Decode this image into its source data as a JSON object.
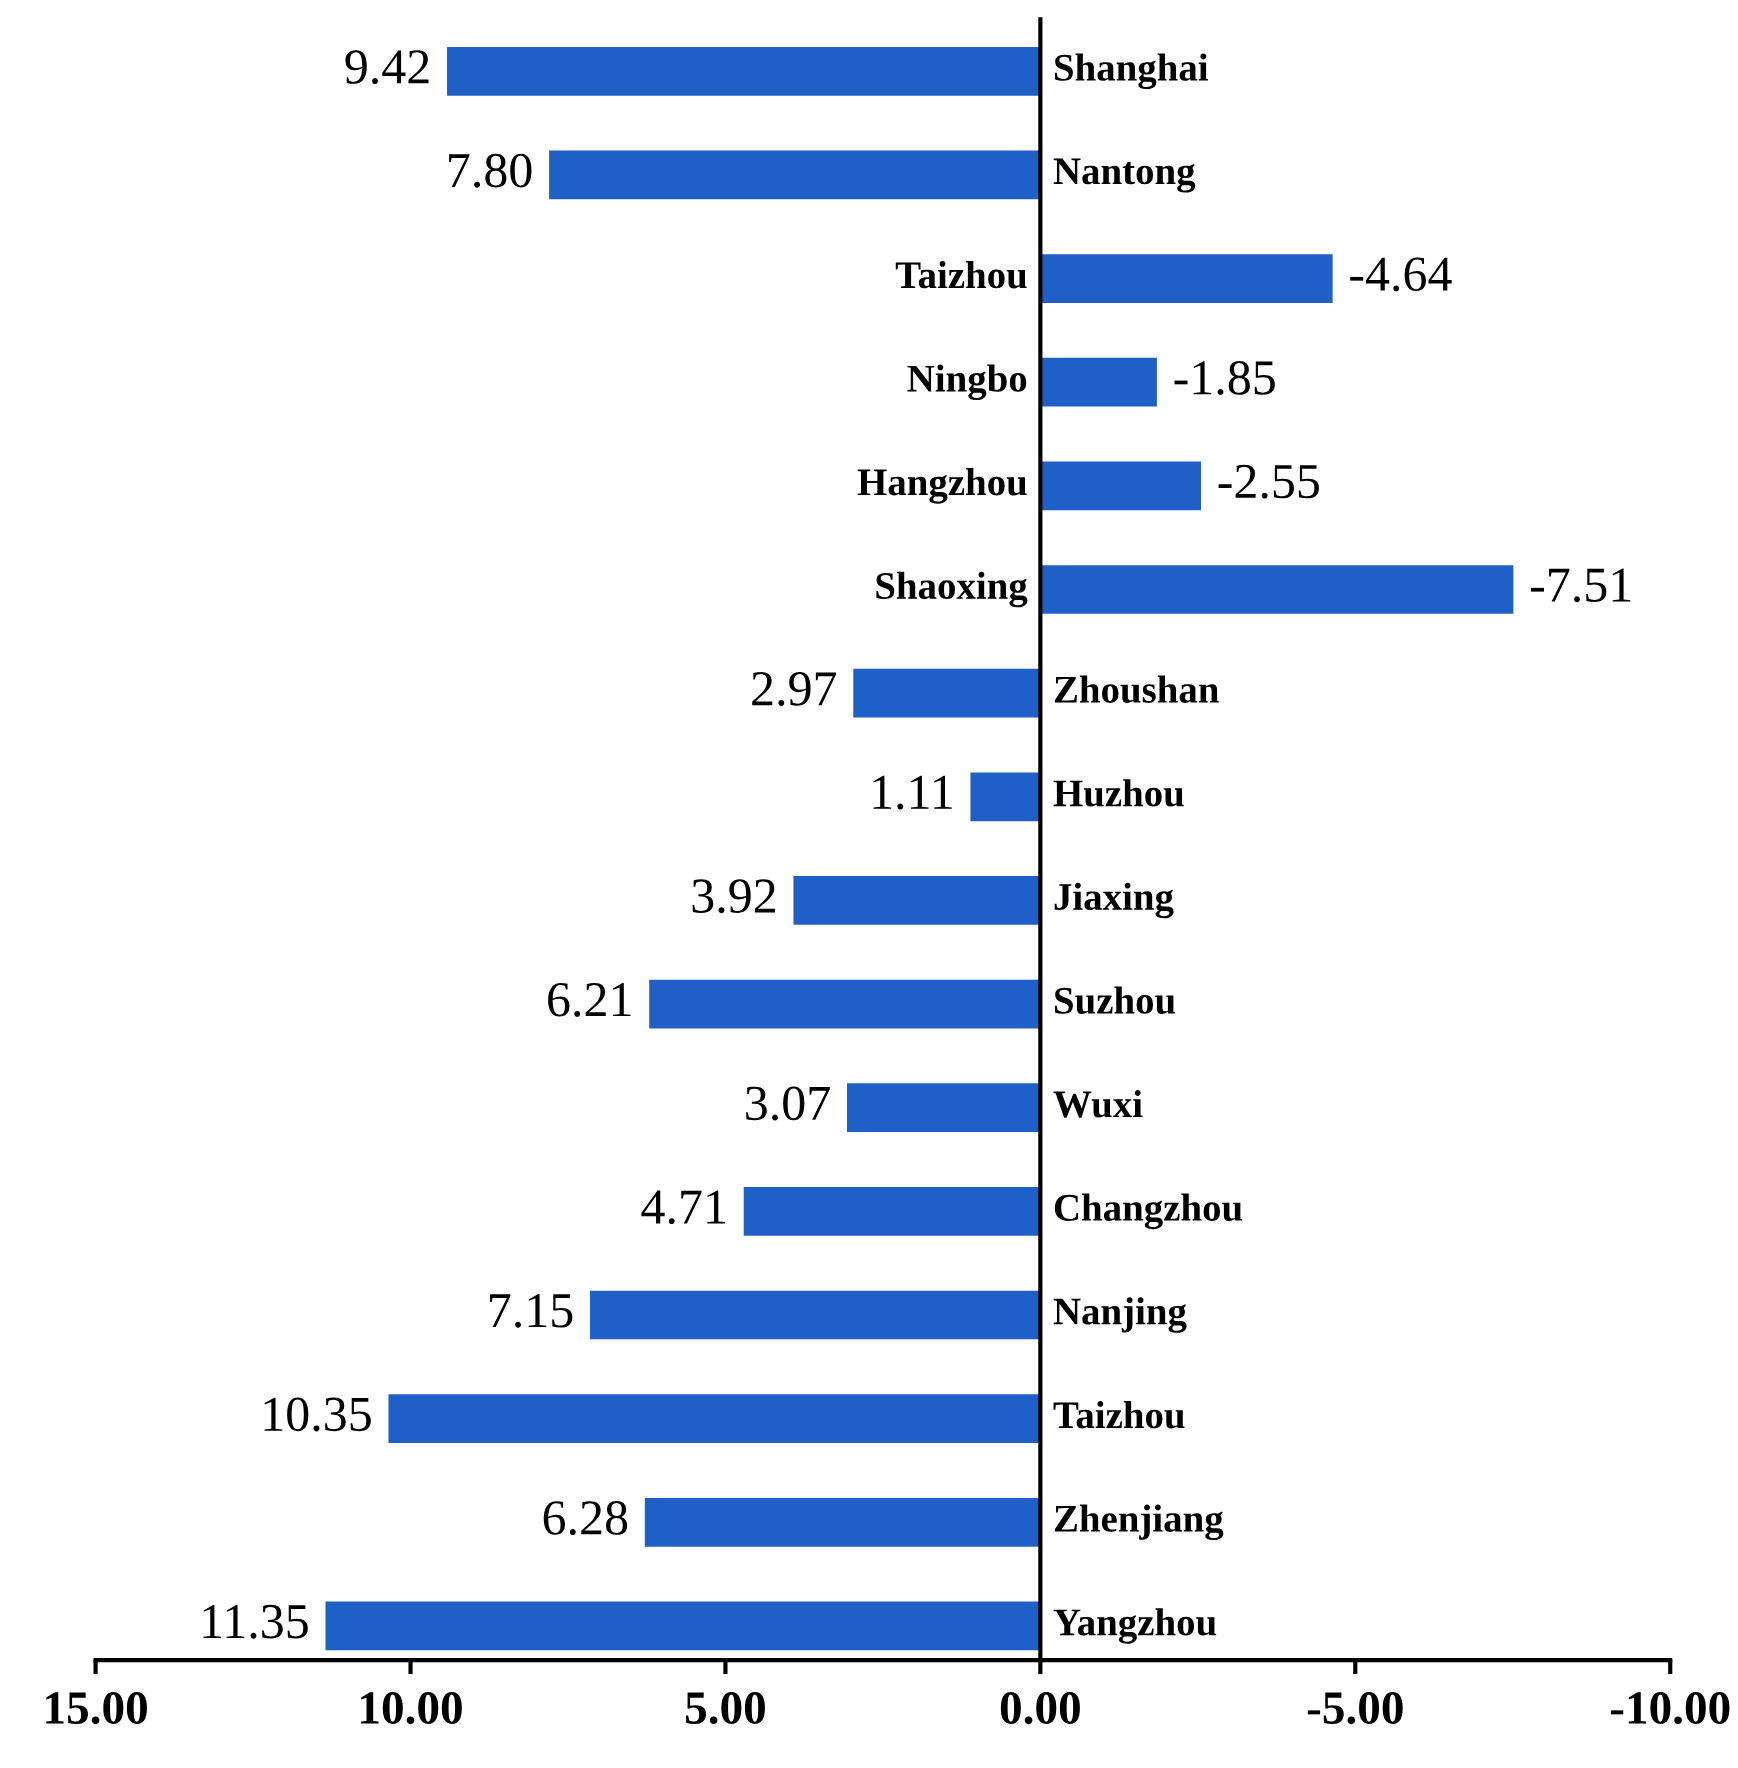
{
  "chart_data": {
    "type": "bar",
    "orientation": "horizontal",
    "categories": [
      "Shanghai",
      "Nantong",
      "Taizhou",
      "Ningbo",
      "Hangzhou",
      "Shaoxing",
      "Zhoushan",
      "Huzhou",
      "Jiaxing",
      "Suzhou",
      "Wuxi",
      "Changzhou",
      "Nanjing",
      "Taizhou",
      "Zhenjiang",
      "Yangzhou"
    ],
    "values": [
      9.42,
      7.8,
      -4.64,
      -1.85,
      -2.55,
      -7.51,
      2.97,
      1.11,
      3.92,
      6.21,
      3.07,
      4.71,
      7.15,
      10.35,
      6.28,
      11.35
    ],
    "value_labels": [
      "9.42",
      "7.80",
      "-4.64",
      "-1.85",
      "-2.55",
      "-7.51",
      "2.97",
      "1.11",
      "3.92",
      "6.21",
      "3.07",
      "4.71",
      "7.15",
      "10.35",
      "6.28",
      "11.35"
    ],
    "color": "#1f5fc8",
    "xlim": [
      15,
      -10
    ],
    "xticks": [
      {
        "value": 15,
        "label": "15.00"
      },
      {
        "value": 10,
        "label": "10.00"
      },
      {
        "value": 5,
        "label": "5.00"
      },
      {
        "value": 0,
        "label": "0.00"
      },
      {
        "value": -5,
        "label": "-5.00"
      },
      {
        "value": -10,
        "label": "-10.00"
      }
    ],
    "grid": false,
    "legend": false
  }
}
